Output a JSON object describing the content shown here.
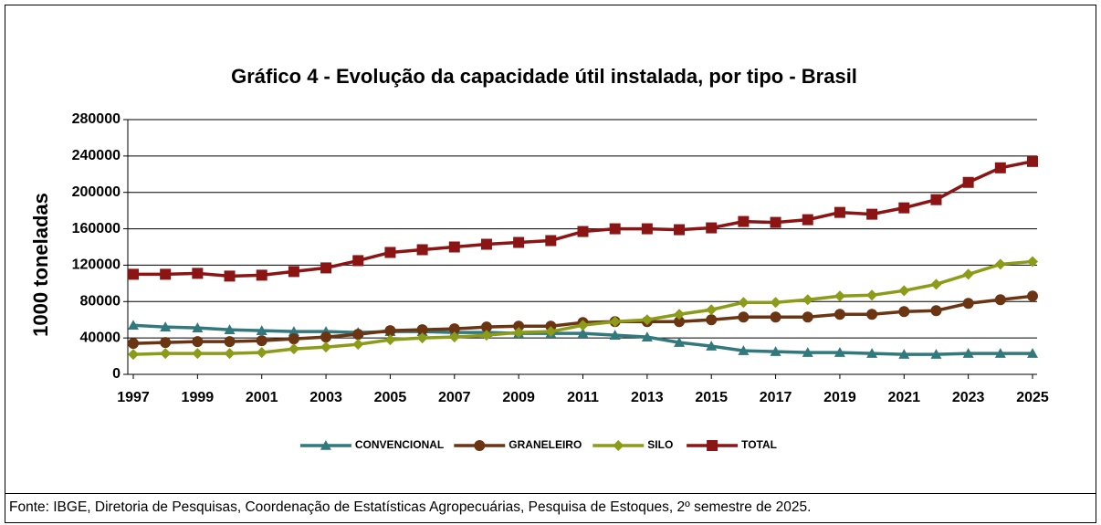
{
  "chart_data": {
    "type": "line",
    "title": "Gráfico 4 - Evolução da capacidade útil instalada, por tipo - Brasil",
    "ylabel": "1000 toneladas",
    "x": [
      1997,
      1998,
      1999,
      2000,
      2001,
      2002,
      2003,
      2004,
      2005,
      2006,
      2007,
      2008,
      2009,
      2010,
      2011,
      2012,
      2013,
      2014,
      2015,
      2016,
      2017,
      2018,
      2019,
      2020,
      2021,
      2022,
      2023,
      2024,
      2025
    ],
    "xlim": [
      1997,
      2025
    ],
    "xticks": [
      1997,
      1999,
      2001,
      2003,
      2005,
      2007,
      2009,
      2011,
      2013,
      2015,
      2017,
      2019,
      2021,
      2023,
      2025
    ],
    "ylim": [
      0,
      280000
    ],
    "yticks": [
      0,
      40000,
      80000,
      120000,
      160000,
      200000,
      240000,
      280000
    ],
    "grid": true,
    "legend": "bottom",
    "series": [
      {
        "name": "CONVENCIONAL",
        "color": "#31797c",
        "marker": "triangle",
        "values": [
          54000,
          52000,
          51000,
          49000,
          48000,
          47000,
          47000,
          46000,
          47000,
          47000,
          46000,
          46000,
          45000,
          45000,
          45000,
          43000,
          41000,
          35000,
          31000,
          26000,
          25000,
          24000,
          24000,
          23000,
          22000,
          22000,
          23000,
          23000,
          23000
        ]
      },
      {
        "name": "GRANELEIRO",
        "color": "#6b3413",
        "marker": "circle",
        "values": [
          34000,
          35000,
          36000,
          36000,
          37000,
          39000,
          41000,
          44000,
          48000,
          49000,
          50000,
          52000,
          53000,
          53000,
          57000,
          58000,
          58000,
          58000,
          60000,
          63000,
          63000,
          63000,
          66000,
          66000,
          69000,
          70000,
          78000,
          82000,
          86000
        ]
      },
      {
        "name": "SILO",
        "color": "#8c9b18",
        "marker": "diamond",
        "values": [
          22000,
          23000,
          23000,
          23000,
          24000,
          28000,
          30000,
          33000,
          38000,
          40000,
          41000,
          43000,
          46000,
          47000,
          54000,
          58000,
          60000,
          66000,
          71000,
          79000,
          79000,
          82000,
          86000,
          87000,
          92000,
          99000,
          110000,
          121000,
          124000
        ]
      },
      {
        "name": "TOTAL",
        "color": "#8b1515",
        "marker": "square",
        "values": [
          110000,
          110000,
          111000,
          108000,
          109000,
          113000,
          117000,
          125000,
          134000,
          137000,
          140000,
          143000,
          145000,
          147000,
          157000,
          160000,
          160000,
          159000,
          161000,
          168000,
          167000,
          170000,
          178000,
          176000,
          183000,
          192000,
          211000,
          227000,
          234000
        ]
      }
    ]
  },
  "footer": "Fonte: IBGE, Diretoria de Pesquisas, Coordenação de Estatísticas Agropecuárias, Pesquisa de Estoques, 2º semestre de 2025."
}
